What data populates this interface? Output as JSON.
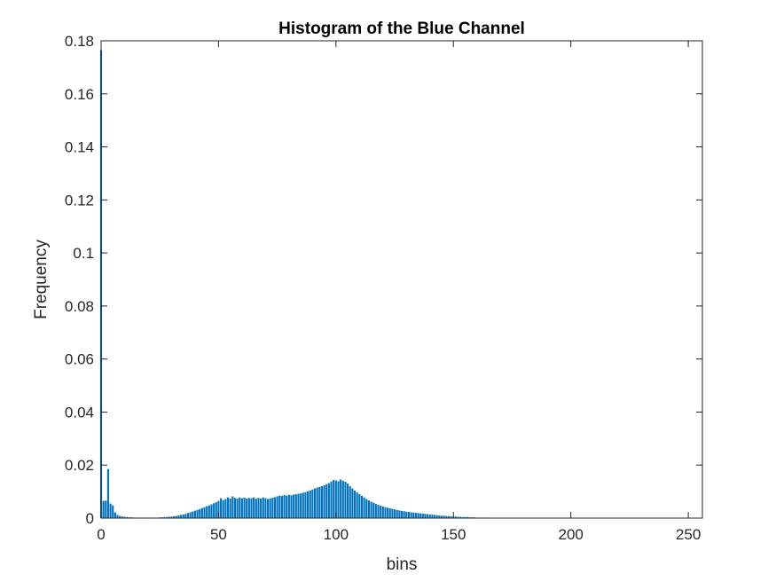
{
  "chart_data": {
    "type": "bar",
    "title": "Histogram of the Blue Channel",
    "xlabel": "bins",
    "ylabel": "Frequency",
    "xlim": [
      0,
      256
    ],
    "ylim": [
      0,
      0.18
    ],
    "xticks": [
      0,
      50,
      100,
      150,
      200,
      250
    ],
    "xtick_labels": [
      "0",
      "50",
      "100",
      "150",
      "200",
      "250"
    ],
    "yticks": [
      0,
      0.02,
      0.04,
      0.06,
      0.08,
      0.1,
      0.12,
      0.14,
      0.16,
      0.18
    ],
    "ytick_labels": [
      "0",
      "0.02",
      "0.04",
      "0.06",
      "0.08",
      "0.1",
      "0.12",
      "0.14",
      "0.16",
      "0.18"
    ],
    "grid": false,
    "box": true,
    "bar_color": "#0072BD",
    "values": [
      0.1765,
      0.0065,
      0.0066,
      0.0185,
      0.0055,
      0.0048,
      0.0022,
      0.0012,
      0.0008,
      0.0006,
      0.0005,
      0.0004,
      0.0003,
      0.0003,
      0.0002,
      0.0002,
      0.0002,
      0.0002,
      0.0002,
      0.0002,
      0.0002,
      0.0002,
      0.0002,
      0.0002,
      0.0002,
      0.0003,
      0.0003,
      0.0004,
      0.0004,
      0.0005,
      0.0006,
      0.0007,
      0.0008,
      0.001,
      0.0012,
      0.0014,
      0.0016,
      0.0019,
      0.0022,
      0.0025,
      0.0028,
      0.0031,
      0.0034,
      0.0038,
      0.0041,
      0.0045,
      0.0048,
      0.0052,
      0.0056,
      0.006,
      0.0065,
      0.0075,
      0.0068,
      0.0072,
      0.0078,
      0.0074,
      0.0082,
      0.0076,
      0.0074,
      0.0078,
      0.0075,
      0.0077,
      0.0074,
      0.0076,
      0.0075,
      0.0078,
      0.0073,
      0.0076,
      0.0074,
      0.0078,
      0.0075,
      0.0072,
      0.0074,
      0.0077,
      0.0079,
      0.0082,
      0.0085,
      0.0084,
      0.0087,
      0.0085,
      0.0088,
      0.0086,
      0.0089,
      0.009,
      0.0092,
      0.0093,
      0.0096,
      0.0098,
      0.0101,
      0.0104,
      0.0108,
      0.0112,
      0.0115,
      0.0118,
      0.012,
      0.0124,
      0.0128,
      0.0132,
      0.0138,
      0.0144,
      0.0142,
      0.0139,
      0.0146,
      0.0141,
      0.0137,
      0.013,
      0.012,
      0.0112,
      0.0104,
      0.0097,
      0.009,
      0.0084,
      0.0078,
      0.0072,
      0.0067,
      0.0062,
      0.0058,
      0.0054,
      0.005,
      0.0047,
      0.0044,
      0.0041,
      0.0039,
      0.0037,
      0.0035,
      0.0033,
      0.0031,
      0.0029,
      0.0027,
      0.0026,
      0.0024,
      0.0023,
      0.0022,
      0.0021,
      0.002,
      0.0019,
      0.0018,
      0.0017,
      0.0016,
      0.0015,
      0.0014,
      0.0013,
      0.0012,
      0.0011,
      0.001,
      0.0009,
      0.0009,
      0.0008,
      0.0007,
      0.0007,
      0.0006,
      0.0006,
      0.0005,
      0.0005,
      0.0004,
      0.0004,
      0.0004,
      0.0003,
      0.0003,
      0.0003,
      0.0002,
      0.0002,
      0.0002,
      0.0002,
      0.0002,
      0.0001,
      0.0001,
      0.0001,
      0.0001,
      0.0001,
      0.0001,
      0.0001,
      0.0001,
      0.0001,
      0,
      0,
      0,
      0,
      0,
      0,
      0,
      0,
      0,
      0,
      0,
      0,
      0,
      0,
      0,
      0,
      0,
      0,
      0,
      0,
      0,
      0,
      0,
      0,
      0,
      0,
      0,
      0,
      0,
      0,
      0,
      0,
      0,
      0,
      0,
      0,
      0,
      0,
      0,
      0,
      0,
      0,
      0,
      0,
      0,
      0,
      0,
      0,
      0,
      0,
      0,
      0,
      0,
      0,
      0,
      0,
      0,
      0,
      0,
      0,
      0,
      0,
      0,
      0,
      0,
      0,
      0,
      0,
      0,
      0,
      0,
      0,
      0,
      0,
      0,
      0,
      0,
      0,
      0,
      0,
      0,
      0,
      0,
      0,
      0,
      0,
      0,
      0,
      0,
      0,
      0
    ]
  }
}
